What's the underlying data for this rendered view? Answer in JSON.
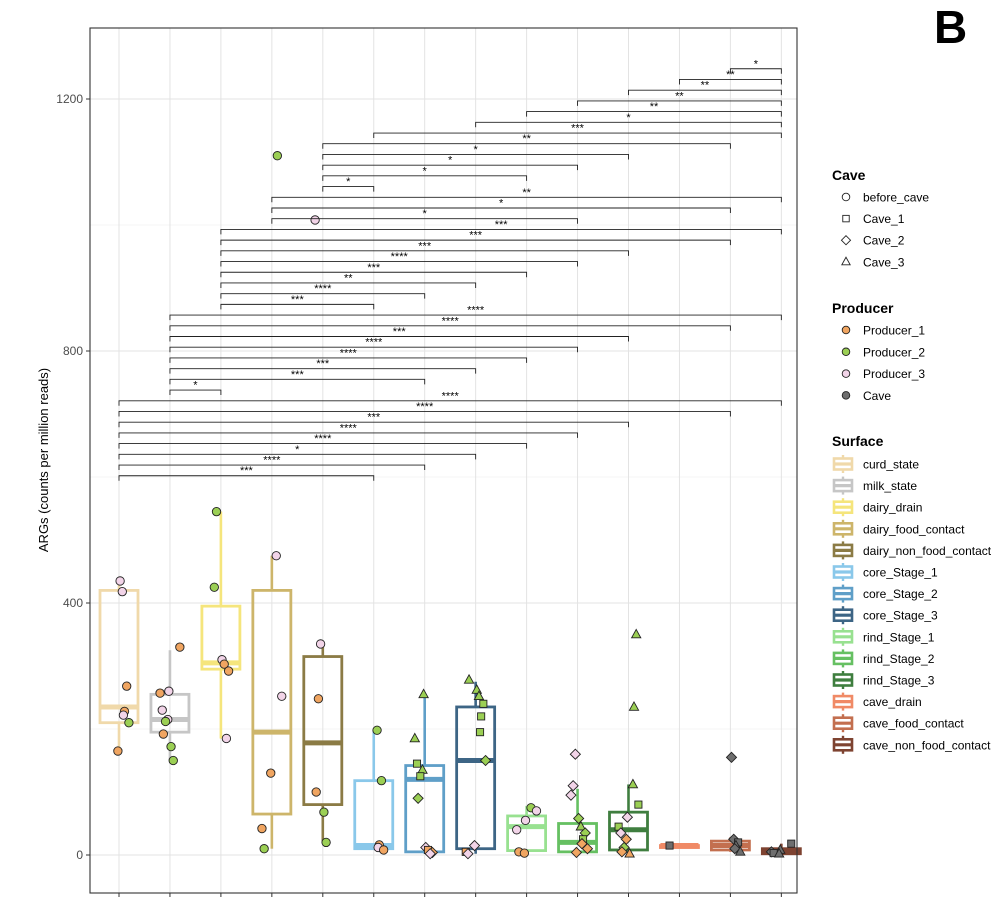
{
  "panel_label": "B",
  "colors": {
    "curd_state": "#f0d9aa",
    "milk_state": "#c6c6c6",
    "dairy_drain": "#f5e57c",
    "dairy_food_contact": "#cdb56a",
    "dairy_non_food_contact": "#8b7b45",
    "core_Stage_1": "#8ac8ea",
    "core_Stage_2": "#5f9fc8",
    "core_Stage_3": "#3d6585",
    "rind_Stage_1": "#98e190",
    "rind_Stage_2": "#66c062",
    "rind_Stage_3": "#3f7e3f",
    "cave_drain": "#f08a66",
    "cave_food_contact": "#c36f4f",
    "cave_non_food_contact": "#7e4331",
    "Producer_1": "#f0a561",
    "Producer_2": "#9bcf54",
    "Producer_3": "#f2d4e8",
    "Cave": "#6e6e6e"
  },
  "chart_data": {
    "type": "boxplot",
    "title": "",
    "xlabel": "",
    "ylabel": "ARGs (counts per million reads)",
    "ylim": [
      -120,
      1310
    ],
    "yticks": [
      0,
      400,
      800,
      1200
    ],
    "grid": true,
    "categories": [
      "curd_state",
      "milk_state",
      "dairy_drain",
      "dairy_food_contact",
      "dairy_non_food_contact",
      "core_Stage_1",
      "core_Stage_2",
      "core_Stage_3",
      "rind_Stage_1",
      "rind_Stage_2",
      "rind_Stage_3",
      "cave_drain",
      "cave_food_contact",
      "cave_non_food_contact"
    ],
    "boxes": [
      {
        "q1": 210,
        "median": 235,
        "q3": 420,
        "low": 165,
        "high": 435
      },
      {
        "q1": 195,
        "median": 215,
        "q3": 255,
        "low": 150,
        "high": 325
      },
      {
        "q1": 295,
        "median": 305,
        "q3": 395,
        "low": 185,
        "high": 545
      },
      {
        "q1": 65,
        "median": 195,
        "q3": 420,
        "low": 10,
        "high": 475
      },
      {
        "q1": 80,
        "median": 178,
        "q3": 315,
        "low": 20,
        "high": 330
      },
      {
        "q1": 10,
        "median": 15,
        "q3": 118,
        "low": 8,
        "high": 198
      },
      {
        "q1": 5,
        "median": 120,
        "q3": 142,
        "low": 2,
        "high": 255
      },
      {
        "q1": 10,
        "median": 150,
        "q3": 235,
        "low": 2,
        "high": 275
      },
      {
        "q1": 7,
        "median": 45,
        "q3": 62,
        "low": 2,
        "high": 78
      },
      {
        "q1": 5,
        "median": 20,
        "q3": 50,
        "low": 2,
        "high": 105
      },
      {
        "q1": 8,
        "median": 40,
        "q3": 68,
        "low": 2,
        "high": 112
      },
      {
        "q1": 15,
        "median": 15,
        "q3": 15,
        "low": 15,
        "high": 15
      },
      {
        "q1": 8,
        "median": 15,
        "q3": 22,
        "low": 5,
        "high": 28
      },
      {
        "q1": 2,
        "median": 5,
        "q3": 10,
        "low": 1,
        "high": 18
      }
    ],
    "points": [
      {
        "c": 0,
        "y": 435,
        "shape": "circle",
        "fill": "Producer_3"
      },
      {
        "c": 0,
        "y": 418,
        "shape": "circle",
        "fill": "Producer_3"
      },
      {
        "c": 0,
        "y": 268,
        "shape": "circle",
        "fill": "Producer_1"
      },
      {
        "c": 0,
        "y": 228,
        "shape": "circle",
        "fill": "Producer_1"
      },
      {
        "c": 0,
        "y": 222,
        "shape": "circle",
        "fill": "Producer_3"
      },
      {
        "c": 0,
        "y": 210,
        "shape": "circle",
        "fill": "Producer_2"
      },
      {
        "c": 0,
        "y": 165,
        "shape": "circle",
        "fill": "Producer_1"
      },
      {
        "c": 1,
        "y": 330,
        "shape": "circle",
        "fill": "Producer_1"
      },
      {
        "c": 1,
        "y": 260,
        "shape": "circle",
        "fill": "Producer_3"
      },
      {
        "c": 1,
        "y": 257,
        "shape": "circle",
        "fill": "Producer_1"
      },
      {
        "c": 1,
        "y": 230,
        "shape": "circle",
        "fill": "Producer_3"
      },
      {
        "c": 1,
        "y": 215,
        "shape": "circle",
        "fill": "Producer_3"
      },
      {
        "c": 1,
        "y": 212,
        "shape": "circle",
        "fill": "Producer_2"
      },
      {
        "c": 1,
        "y": 192,
        "shape": "circle",
        "fill": "Producer_1"
      },
      {
        "c": 1,
        "y": 172,
        "shape": "circle",
        "fill": "Producer_2"
      },
      {
        "c": 1,
        "y": 150,
        "shape": "circle",
        "fill": "Producer_2"
      },
      {
        "c": 2,
        "y": 545,
        "shape": "circle",
        "fill": "Producer_2"
      },
      {
        "c": 2,
        "y": 425,
        "shape": "circle",
        "fill": "Producer_2"
      },
      {
        "c": 2,
        "y": 310,
        "shape": "circle",
        "fill": "Producer_3"
      },
      {
        "c": 2,
        "y": 303,
        "shape": "circle",
        "fill": "Producer_1"
      },
      {
        "c": 2,
        "y": 292,
        "shape": "circle",
        "fill": "Producer_1"
      },
      {
        "c": 2,
        "y": 185,
        "shape": "circle",
        "fill": "Producer_3"
      },
      {
        "c": 3,
        "y": 1110,
        "shape": "circle",
        "fill": "Producer_2"
      },
      {
        "c": 3,
        "y": 475,
        "shape": "circle",
        "fill": "Producer_3"
      },
      {
        "c": 3,
        "y": 252,
        "shape": "circle",
        "fill": "Producer_3"
      },
      {
        "c": 3,
        "y": 130,
        "shape": "circle",
        "fill": "Producer_1"
      },
      {
        "c": 3,
        "y": 42,
        "shape": "circle",
        "fill": "Producer_1"
      },
      {
        "c": 3,
        "y": 10,
        "shape": "circle",
        "fill": "Producer_2"
      },
      {
        "c": 4,
        "y": 1008,
        "shape": "circle",
        "fill": "Producer_3"
      },
      {
        "c": 4,
        "y": 335,
        "shape": "circle",
        "fill": "Producer_3"
      },
      {
        "c": 4,
        "y": 248,
        "shape": "circle",
        "fill": "Producer_1"
      },
      {
        "c": 4,
        "y": 100,
        "shape": "circle",
        "fill": "Producer_1"
      },
      {
        "c": 4,
        "y": 68,
        "shape": "circle",
        "fill": "Producer_2"
      },
      {
        "c": 4,
        "y": 20,
        "shape": "circle",
        "fill": "Producer_2"
      },
      {
        "c": 5,
        "y": 198,
        "shape": "circle",
        "fill": "Producer_2"
      },
      {
        "c": 5,
        "y": 118,
        "shape": "circle",
        "fill": "Producer_2"
      },
      {
        "c": 5,
        "y": 16,
        "shape": "circle",
        "fill": "Producer_1"
      },
      {
        "c": 5,
        "y": 12,
        "shape": "circle",
        "fill": "Producer_3"
      },
      {
        "c": 5,
        "y": 8,
        "shape": "circle",
        "fill": "Producer_1"
      },
      {
        "c": 6,
        "y": 255,
        "shape": "triangle",
        "fill": "Producer_2"
      },
      {
        "c": 6,
        "y": 185,
        "shape": "triangle",
        "fill": "Producer_2"
      },
      {
        "c": 6,
        "y": 145,
        "shape": "square",
        "fill": "Producer_2"
      },
      {
        "c": 6,
        "y": 135,
        "shape": "triangle",
        "fill": "Producer_2"
      },
      {
        "c": 6,
        "y": 125,
        "shape": "square",
        "fill": "Producer_2"
      },
      {
        "c": 6,
        "y": 90,
        "shape": "diamond",
        "fill": "Producer_2"
      },
      {
        "c": 6,
        "y": 12,
        "shape": "diamond",
        "fill": "Producer_3"
      },
      {
        "c": 6,
        "y": 8,
        "shape": "square",
        "fill": "Producer_1"
      },
      {
        "c": 6,
        "y": 4,
        "shape": "diamond",
        "fill": "Producer_1"
      },
      {
        "c": 6,
        "y": 2,
        "shape": "diamond",
        "fill": "Producer_3"
      },
      {
        "c": 7,
        "y": 278,
        "shape": "triangle",
        "fill": "Producer_2"
      },
      {
        "c": 7,
        "y": 262,
        "shape": "triangle",
        "fill": "Producer_2"
      },
      {
        "c": 7,
        "y": 252,
        "shape": "triangle",
        "fill": "Producer_2"
      },
      {
        "c": 7,
        "y": 240,
        "shape": "square",
        "fill": "Producer_2"
      },
      {
        "c": 7,
        "y": 220,
        "shape": "square",
        "fill": "Producer_2"
      },
      {
        "c": 7,
        "y": 195,
        "shape": "square",
        "fill": "Producer_2"
      },
      {
        "c": 7,
        "y": 150,
        "shape": "diamond",
        "fill": "Producer_2"
      },
      {
        "c": 7,
        "y": 15,
        "shape": "diamond",
        "fill": "Producer_3"
      },
      {
        "c": 7,
        "y": 5,
        "shape": "square",
        "fill": "Producer_1"
      },
      {
        "c": 7,
        "y": 2,
        "shape": "diamond",
        "fill": "Producer_3"
      },
      {
        "c": 8,
        "y": 75,
        "shape": "circle",
        "fill": "Producer_2"
      },
      {
        "c": 8,
        "y": 70,
        "shape": "circle",
        "fill": "Producer_3"
      },
      {
        "c": 8,
        "y": 55,
        "shape": "circle",
        "fill": "Producer_3"
      },
      {
        "c": 8,
        "y": 40,
        "shape": "circle",
        "fill": "Producer_3"
      },
      {
        "c": 8,
        "y": 5,
        "shape": "circle",
        "fill": "Producer_1"
      },
      {
        "c": 8,
        "y": 3,
        "shape": "circle",
        "fill": "Producer_1"
      },
      {
        "c": 9,
        "y": 160,
        "shape": "diamond",
        "fill": "Producer_3"
      },
      {
        "c": 9,
        "y": 110,
        "shape": "diamond",
        "fill": "Producer_3"
      },
      {
        "c": 9,
        "y": 95,
        "shape": "diamond",
        "fill": "Producer_3"
      },
      {
        "c": 9,
        "y": 58,
        "shape": "diamond",
        "fill": "Producer_2"
      },
      {
        "c": 9,
        "y": 45,
        "shape": "triangle",
        "fill": "Producer_2"
      },
      {
        "c": 9,
        "y": 35,
        "shape": "diamond",
        "fill": "Producer_2"
      },
      {
        "c": 9,
        "y": 25,
        "shape": "square",
        "fill": "Producer_2"
      },
      {
        "c": 9,
        "y": 18,
        "shape": "diamond",
        "fill": "Producer_1"
      },
      {
        "c": 9,
        "y": 10,
        "shape": "diamond",
        "fill": "Producer_1"
      },
      {
        "c": 9,
        "y": 4,
        "shape": "diamond",
        "fill": "Producer_1"
      },
      {
        "c": 10,
        "y": 350,
        "shape": "triangle",
        "fill": "Producer_2"
      },
      {
        "c": 10,
        "y": 235,
        "shape": "triangle",
        "fill": "Producer_2"
      },
      {
        "c": 10,
        "y": 112,
        "shape": "triangle",
        "fill": "Producer_2"
      },
      {
        "c": 10,
        "y": 80,
        "shape": "square",
        "fill": "Producer_2"
      },
      {
        "c": 10,
        "y": 60,
        "shape": "diamond",
        "fill": "Producer_3"
      },
      {
        "c": 10,
        "y": 45,
        "shape": "square",
        "fill": "Producer_2"
      },
      {
        "c": 10,
        "y": 35,
        "shape": "diamond",
        "fill": "Producer_3"
      },
      {
        "c": 10,
        "y": 25,
        "shape": "diamond",
        "fill": "Producer_1"
      },
      {
        "c": 10,
        "y": 12,
        "shape": "diamond",
        "fill": "Producer_2"
      },
      {
        "c": 10,
        "y": 5,
        "shape": "diamond",
        "fill": "Producer_1"
      },
      {
        "c": 10,
        "y": 2,
        "shape": "triangle",
        "fill": "Producer_1"
      },
      {
        "c": 11,
        "y": 15,
        "shape": "square",
        "fill": "Cave"
      },
      {
        "c": 12,
        "y": 155,
        "shape": "diamond",
        "fill": "Cave"
      },
      {
        "c": 12,
        "y": 25,
        "shape": "diamond",
        "fill": "Cave"
      },
      {
        "c": 12,
        "y": 20,
        "shape": "square",
        "fill": "Cave"
      },
      {
        "c": 12,
        "y": 15,
        "shape": "triangle",
        "fill": "Cave"
      },
      {
        "c": 12,
        "y": 10,
        "shape": "diamond",
        "fill": "Cave"
      },
      {
        "c": 12,
        "y": 5,
        "shape": "triangle",
        "fill": "Cave"
      },
      {
        "c": 13,
        "y": 18,
        "shape": "square",
        "fill": "Cave"
      },
      {
        "c": 13,
        "y": 8,
        "shape": "triangle",
        "fill": "Cave"
      },
      {
        "c": 13,
        "y": 5,
        "shape": "diamond",
        "fill": "Cave"
      },
      {
        "c": 13,
        "y": 3,
        "shape": "square",
        "fill": "Cave"
      },
      {
        "c": 13,
        "y": 2,
        "shape": "triangle",
        "fill": "Cave"
      }
    ],
    "brackets": [
      {
        "from": 12,
        "to": 13,
        "y": 1248,
        "label": "*"
      },
      {
        "from": 11,
        "to": 13,
        "y": 1231,
        "label": "**"
      },
      {
        "from": 10,
        "to": 13,
        "y": 1214,
        "label": "**"
      },
      {
        "from": 9,
        "to": 13,
        "y": 1197,
        "label": "**"
      },
      {
        "from": 8,
        "to": 13,
        "y": 1180,
        "label": "**"
      },
      {
        "from": 7,
        "to": 13,
        "y": 1163,
        "label": "*"
      },
      {
        "from": 5,
        "to": 13,
        "y": 1146,
        "label": "***"
      },
      {
        "from": 4,
        "to": 12,
        "y": 1129,
        "label": "**"
      },
      {
        "from": 4,
        "to": 10,
        "y": 1112,
        "label": "*"
      },
      {
        "from": 4,
        "to": 9,
        "y": 1095,
        "label": "*"
      },
      {
        "from": 4,
        "to": 8,
        "y": 1078,
        "label": "*"
      },
      {
        "from": 4,
        "to": 5,
        "y": 1061,
        "label": "*"
      },
      {
        "from": 3,
        "to": 13,
        "y": 1044,
        "label": "**"
      },
      {
        "from": 3,
        "to": 12,
        "y": 1027,
        "label": "*"
      },
      {
        "from": 3,
        "to": 9,
        "y": 1010,
        "label": "*"
      },
      {
        "from": 2,
        "to": 13,
        "y": 993,
        "label": "***"
      },
      {
        "from": 2,
        "to": 12,
        "y": 976,
        "label": "***"
      },
      {
        "from": 2,
        "to": 10,
        "y": 959,
        "label": "***"
      },
      {
        "from": 2,
        "to": 9,
        "y": 942,
        "label": "****"
      },
      {
        "from": 2,
        "to": 8,
        "y": 925,
        "label": "***"
      },
      {
        "from": 2,
        "to": 7,
        "y": 908,
        "label": "**"
      },
      {
        "from": 2,
        "to": 6,
        "y": 891,
        "label": "****"
      },
      {
        "from": 2,
        "to": 5,
        "y": 874,
        "label": "***"
      },
      {
        "from": 1,
        "to": 13,
        "y": 857,
        "label": "****"
      },
      {
        "from": 1,
        "to": 12,
        "y": 840,
        "label": "****"
      },
      {
        "from": 1,
        "to": 10,
        "y": 823,
        "label": "***"
      },
      {
        "from": 1,
        "to": 9,
        "y": 806,
        "label": "****"
      },
      {
        "from": 1,
        "to": 8,
        "y": 789,
        "label": "****"
      },
      {
        "from": 1,
        "to": 7,
        "y": 772,
        "label": "***"
      },
      {
        "from": 1,
        "to": 6,
        "y": 755,
        "label": "***"
      },
      {
        "from": 1,
        "to": 2,
        "y": 738,
        "label": "*"
      },
      {
        "from": 0,
        "to": 13,
        "y": 721,
        "label": "****"
      },
      {
        "from": 0,
        "to": 12,
        "y": 704,
        "label": "****"
      },
      {
        "from": 0,
        "to": 10,
        "y": 687,
        "label": "***"
      },
      {
        "from": 0,
        "to": 9,
        "y": 670,
        "label": "****"
      },
      {
        "from": 0,
        "to": 8,
        "y": 653,
        "label": "****"
      },
      {
        "from": 0,
        "to": 7,
        "y": 636,
        "label": "*"
      },
      {
        "from": 0,
        "to": 6,
        "y": 619,
        "label": "****"
      },
      {
        "from": 0,
        "to": 5,
        "y": 602,
        "label": "***"
      }
    ]
  },
  "legend": {
    "cave": {
      "title": "Cave",
      "items": [
        {
          "label": "before_cave",
          "shape": "circle"
        },
        {
          "label": "Cave_1",
          "shape": "square"
        },
        {
          "label": "Cave_2",
          "shape": "diamond"
        },
        {
          "label": "Cave_3",
          "shape": "triangle"
        }
      ]
    },
    "producer": {
      "title": "Producer",
      "items": [
        {
          "label": "Producer_1",
          "color_key": "Producer_1"
        },
        {
          "label": "Producer_2",
          "color_key": "Producer_2"
        },
        {
          "label": "Producer_3",
          "color_key": "Producer_3"
        },
        {
          "label": "Cave",
          "color_key": "Cave"
        }
      ]
    },
    "surface": {
      "title": "Surface",
      "items": [
        "curd_state",
        "milk_state",
        "dairy_drain",
        "dairy_food_contact",
        "dairy_non_food_contact",
        "core_Stage_1",
        "core_Stage_2",
        "core_Stage_3",
        "rind_Stage_1",
        "rind_Stage_2",
        "rind_Stage_3",
        "cave_drain",
        "cave_food_contact",
        "cave_non_food_contact"
      ]
    }
  }
}
